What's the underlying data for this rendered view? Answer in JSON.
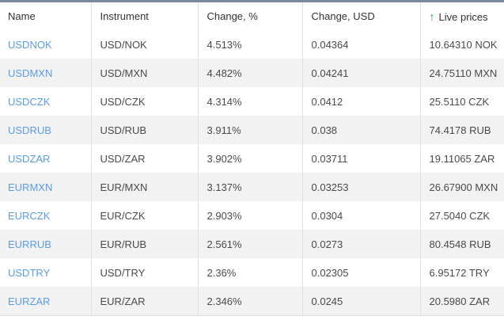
{
  "table": {
    "columns": [
      {
        "key": "name",
        "label": "Name"
      },
      {
        "key": "instrument",
        "label": "Instrument"
      },
      {
        "key": "change_pct",
        "label": "Change, %"
      },
      {
        "key": "change_usd",
        "label": "Change, USD"
      },
      {
        "key": "live_price",
        "label": "Live prices",
        "icon": "up-arrow"
      }
    ],
    "rows": [
      {
        "name": "USDNOK",
        "instrument": "USD/NOK",
        "change_pct": "4.513%",
        "change_usd": "0.04364",
        "live_price": "10.64310 NOK"
      },
      {
        "name": "USDMXN",
        "instrument": "USD/MXN",
        "change_pct": "4.482%",
        "change_usd": "0.04241",
        "live_price": "24.75110 MXN"
      },
      {
        "name": "USDCZK",
        "instrument": "USD/CZK",
        "change_pct": "4.314%",
        "change_usd": "0.0412",
        "live_price": "25.5110 CZK"
      },
      {
        "name": "USDRUB",
        "instrument": "USD/RUB",
        "change_pct": "3.911%",
        "change_usd": "0.038",
        "live_price": "74.4178 RUB"
      },
      {
        "name": "USDZAR",
        "instrument": "USD/ZAR",
        "change_pct": "3.902%",
        "change_usd": "0.03711",
        "live_price": "19.11065 ZAR"
      },
      {
        "name": "EURMXN",
        "instrument": "EUR/MXN",
        "change_pct": "3.137%",
        "change_usd": "0.03253",
        "live_price": "26.67900 MXN"
      },
      {
        "name": "EURCZK",
        "instrument": "EUR/CZK",
        "change_pct": "2.903%",
        "change_usd": "0.0304",
        "live_price": "27.5040 CZK"
      },
      {
        "name": "EURRUB",
        "instrument": "EUR/RUB",
        "change_pct": "2.561%",
        "change_usd": "0.0273",
        "live_price": "80.4548 RUB"
      },
      {
        "name": "USDTRY",
        "instrument": "USD/TRY",
        "change_pct": "2.36%",
        "change_usd": "0.02305",
        "live_price": "6.95172 TRY"
      },
      {
        "name": "EURZAR",
        "instrument": "EUR/ZAR",
        "change_pct": "2.346%",
        "change_usd": "0.0245",
        "live_price": "20.5980 ZAR"
      }
    ]
  },
  "icons": {
    "up_arrow": "↑"
  },
  "colors": {
    "top-bar": "#7a8ba0",
    "row-alt": "#f2f2f2",
    "grid-line": "#e0e0e0",
    "link-blue": "#5b9ce6",
    "arrow-green": "#1fa42b",
    "header-text": "#333333",
    "cell-text": "#4a4a4a"
  }
}
